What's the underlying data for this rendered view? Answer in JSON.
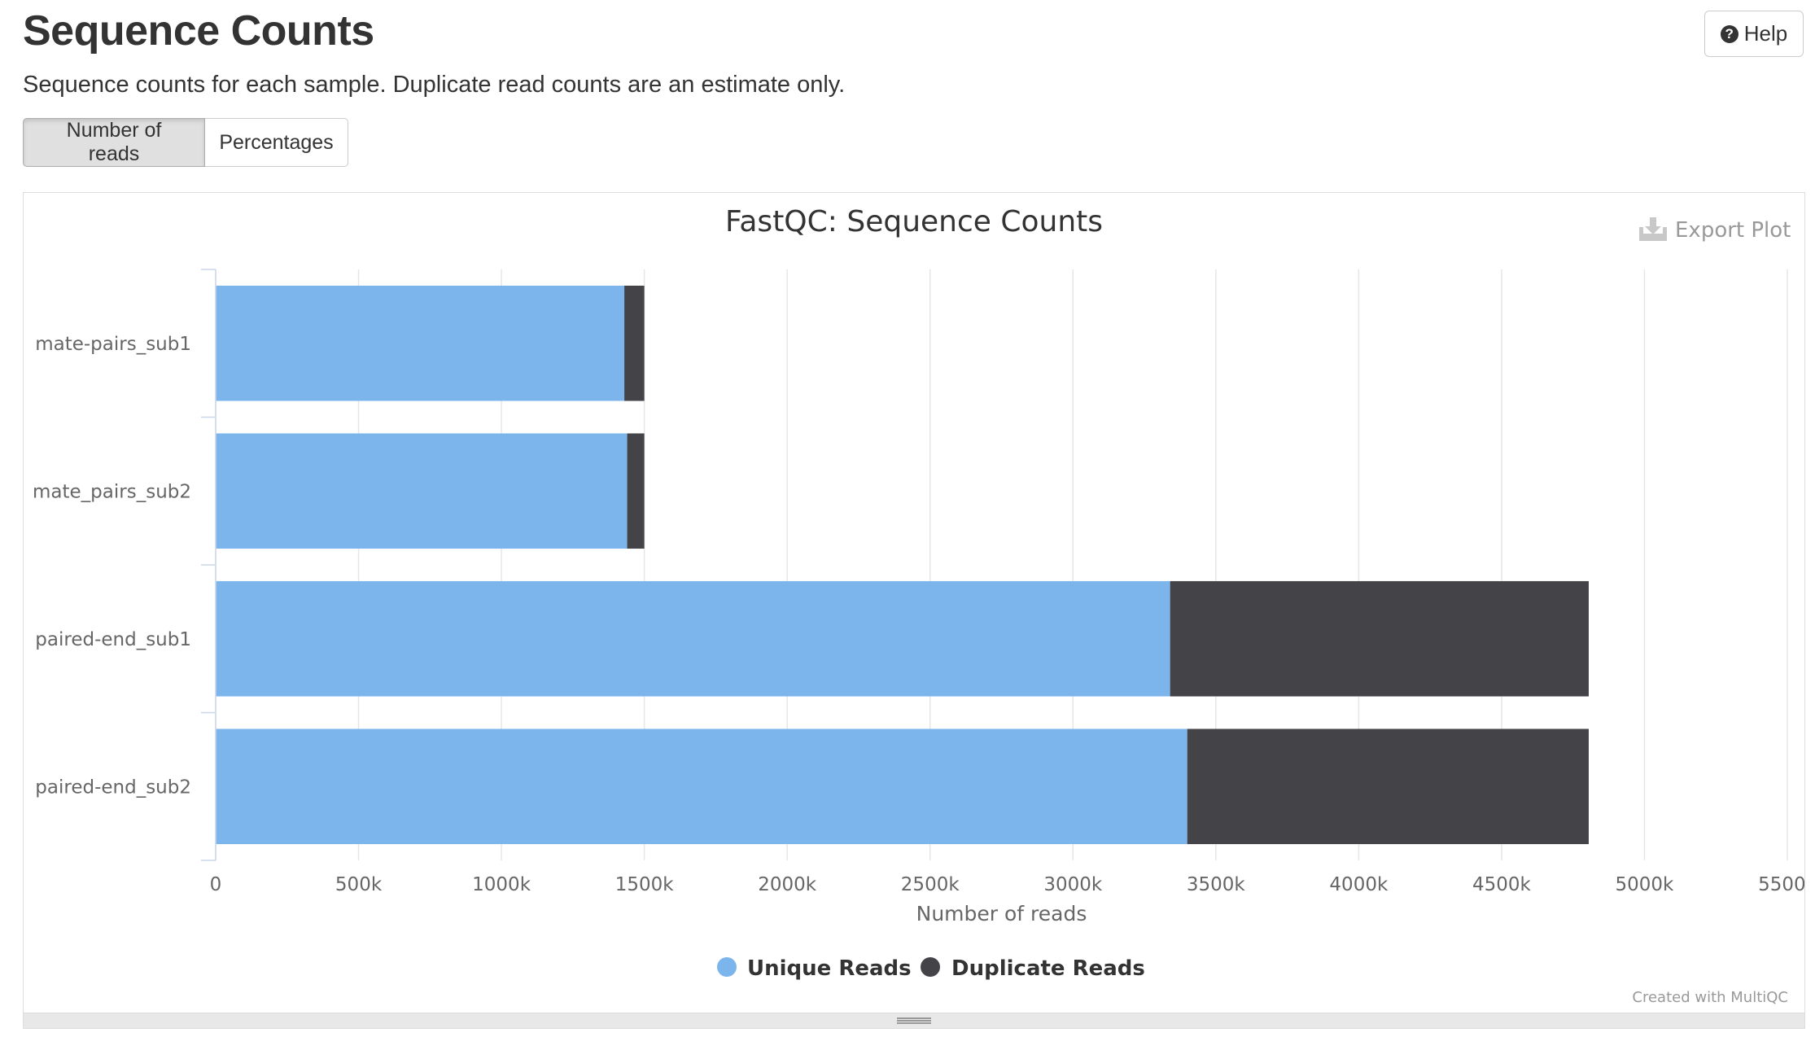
{
  "header": {
    "title": "Sequence Counts",
    "help_label": "Help",
    "description": "Sequence counts for each sample. Duplicate read counts are an estimate only."
  },
  "toggles": [
    {
      "label": "Number of reads",
      "active": true
    },
    {
      "label": "Percentages",
      "active": false
    }
  ],
  "export_label": "Export Plot",
  "credit": "Created with MultiQC",
  "colors": {
    "unique": "#7cb5ec",
    "duplicate": "#434348",
    "grid": "#e6e6e6",
    "axis": "#ccd6eb"
  },
  "chart_data": {
    "type": "bar",
    "orientation": "horizontal",
    "stacked": true,
    "title": "FastQC: Sequence Counts",
    "xlabel": "Number of reads",
    "xlim": [
      0,
      5500000
    ],
    "xticks": [
      0,
      500000,
      1000000,
      1500000,
      2000000,
      2500000,
      3000000,
      3500000,
      4000000,
      4500000,
      5000000,
      5500000
    ],
    "xtick_labels": [
      "0",
      "500k",
      "1000k",
      "1500k",
      "2000k",
      "2500k",
      "3000k",
      "3500k",
      "4000k",
      "4500k",
      "5000k",
      "5500k"
    ],
    "categories": [
      "mate-pairs_sub1",
      "mate_pairs_sub2",
      "paired-end_sub1",
      "paired-end_sub2"
    ],
    "series": [
      {
        "name": "Unique Reads",
        "values": [
          1430000,
          1440000,
          3340000,
          3400000
        ]
      },
      {
        "name": "Duplicate Reads",
        "values": [
          70000,
          60000,
          1465000,
          1405000
        ]
      }
    ],
    "grid": true,
    "legend_position": "bottom-center"
  }
}
